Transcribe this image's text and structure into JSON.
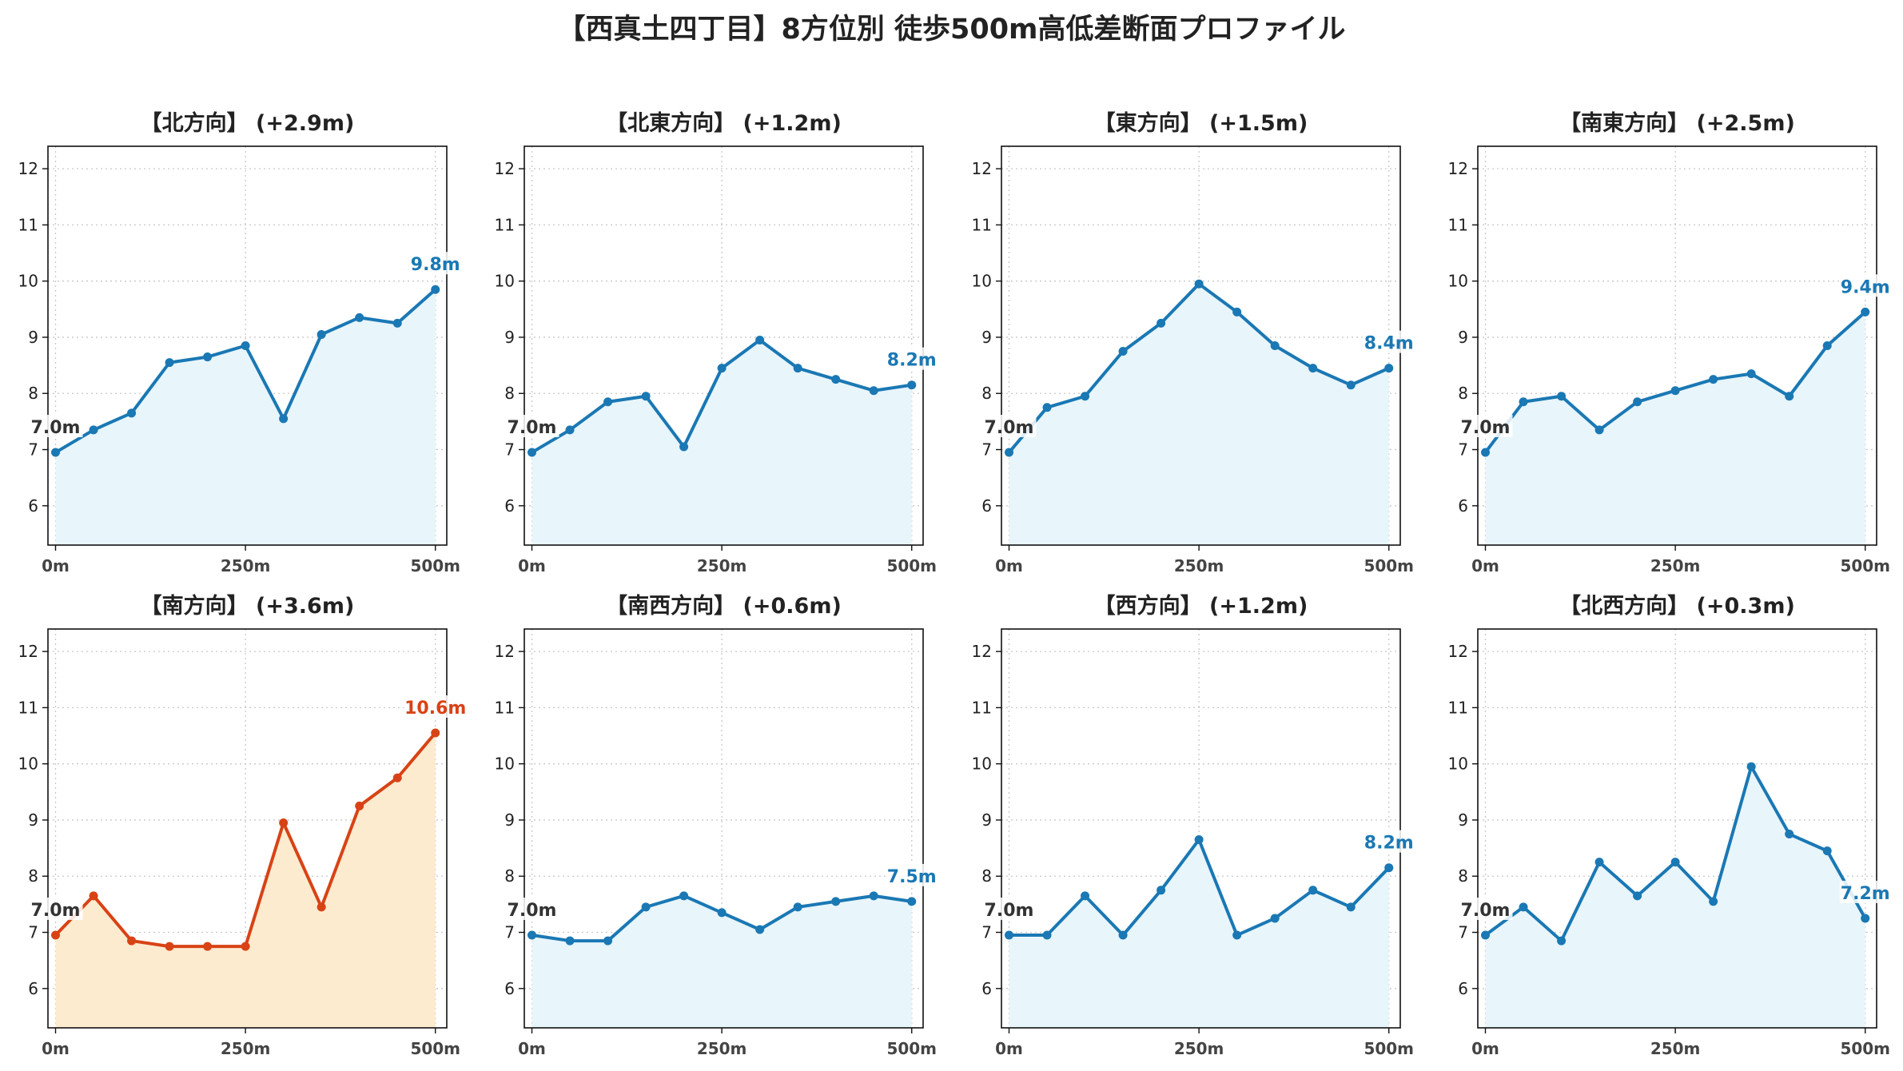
{
  "title": "【西真土四丁目】8方位別 徒歩500m高低差断面プロファイル",
  "colors": {
    "normal_line": "#1a78b4",
    "normal_fill": "#e8f5fb",
    "highlight_line": "#d84315",
    "highlight_fill": "#fdebd0",
    "start_label": "#333333",
    "grid": "#c8c8c8"
  },
  "chart_data": [
    {
      "type": "line",
      "title": "【北方向】 (+2.9m)",
      "highlight": false,
      "x": [
        0,
        50,
        100,
        150,
        200,
        250,
        300,
        350,
        400,
        450,
        500
      ],
      "y": [
        6.95,
        7.35,
        7.65,
        8.55,
        8.65,
        8.85,
        7.55,
        9.05,
        9.35,
        9.25,
        9.85
      ],
      "start_label": "7.0m",
      "end_label": "9.8m",
      "xticks": [
        0,
        250,
        500
      ],
      "xtick_labels": [
        "0m",
        "250m",
        "500m"
      ],
      "yticks": [
        6,
        7,
        8,
        9,
        10,
        11,
        12
      ],
      "ylim": [
        5.3,
        12.4
      ],
      "xlim": [
        -10,
        515
      ],
      "grid": true
    },
    {
      "type": "line",
      "title": "【北東方向】 (+1.2m)",
      "highlight": false,
      "x": [
        0,
        50,
        100,
        150,
        200,
        250,
        300,
        350,
        400,
        450,
        500
      ],
      "y": [
        6.95,
        7.35,
        7.85,
        7.95,
        7.05,
        8.45,
        8.95,
        8.45,
        8.25,
        8.05,
        8.15
      ],
      "start_label": "7.0m",
      "end_label": "8.2m",
      "xticks": [
        0,
        250,
        500
      ],
      "xtick_labels": [
        "0m",
        "250m",
        "500m"
      ],
      "yticks": [
        6,
        7,
        8,
        9,
        10,
        11,
        12
      ],
      "ylim": [
        5.3,
        12.4
      ],
      "xlim": [
        -10,
        515
      ],
      "grid": true
    },
    {
      "type": "line",
      "title": "【東方向】 (+1.5m)",
      "highlight": false,
      "x": [
        0,
        50,
        100,
        150,
        200,
        250,
        300,
        350,
        400,
        450,
        500
      ],
      "y": [
        6.95,
        7.75,
        7.95,
        8.75,
        9.25,
        9.95,
        9.45,
        8.85,
        8.45,
        8.15,
        8.45
      ],
      "start_label": "7.0m",
      "end_label": "8.4m",
      "xticks": [
        0,
        250,
        500
      ],
      "xtick_labels": [
        "0m",
        "250m",
        "500m"
      ],
      "yticks": [
        6,
        7,
        8,
        9,
        10,
        11,
        12
      ],
      "ylim": [
        5.3,
        12.4
      ],
      "xlim": [
        -10,
        515
      ],
      "grid": true
    },
    {
      "type": "line",
      "title": "【南東方向】 (+2.5m)",
      "highlight": false,
      "x": [
        0,
        50,
        100,
        150,
        200,
        250,
        300,
        350,
        400,
        450,
        500
      ],
      "y": [
        6.95,
        7.85,
        7.95,
        7.35,
        7.85,
        8.05,
        8.25,
        8.35,
        7.95,
        8.85,
        9.45
      ],
      "start_label": "7.0m",
      "end_label": "9.4m",
      "xticks": [
        0,
        250,
        500
      ],
      "xtick_labels": [
        "0m",
        "250m",
        "500m"
      ],
      "yticks": [
        6,
        7,
        8,
        9,
        10,
        11,
        12
      ],
      "ylim": [
        5.3,
        12.4
      ],
      "xlim": [
        -10,
        515
      ],
      "grid": true
    },
    {
      "type": "line",
      "title": "【南方向】 (+3.6m)",
      "highlight": true,
      "x": [
        0,
        50,
        100,
        150,
        200,
        250,
        300,
        350,
        400,
        450,
        500
      ],
      "y": [
        6.95,
        7.65,
        6.85,
        6.75,
        6.75,
        6.75,
        8.95,
        7.45,
        9.25,
        9.75,
        10.55
      ],
      "start_label": "7.0m",
      "end_label": "10.6m",
      "xticks": [
        0,
        250,
        500
      ],
      "xtick_labels": [
        "0m",
        "250m",
        "500m"
      ],
      "yticks": [
        6,
        7,
        8,
        9,
        10,
        11,
        12
      ],
      "ylim": [
        5.3,
        12.4
      ],
      "xlim": [
        -10,
        515
      ],
      "grid": true
    },
    {
      "type": "line",
      "title": "【南西方向】 (+0.6m)",
      "highlight": false,
      "x": [
        0,
        50,
        100,
        150,
        200,
        250,
        300,
        350,
        400,
        450,
        500
      ],
      "y": [
        6.95,
        6.85,
        6.85,
        7.45,
        7.65,
        7.35,
        7.05,
        7.45,
        7.55,
        7.65,
        7.55
      ],
      "start_label": "7.0m",
      "end_label": "7.5m",
      "xticks": [
        0,
        250,
        500
      ],
      "xtick_labels": [
        "0m",
        "250m",
        "500m"
      ],
      "yticks": [
        6,
        7,
        8,
        9,
        10,
        11,
        12
      ],
      "ylim": [
        5.3,
        12.4
      ],
      "xlim": [
        -10,
        515
      ],
      "grid": true
    },
    {
      "type": "line",
      "title": "【西方向】 (+1.2m)",
      "highlight": false,
      "x": [
        0,
        50,
        100,
        150,
        200,
        250,
        300,
        350,
        400,
        450,
        500
      ],
      "y": [
        6.95,
        6.95,
        7.65,
        6.95,
        7.75,
        8.65,
        6.95,
        7.25,
        7.75,
        7.45,
        8.15
      ],
      "start_label": "7.0m",
      "end_label": "8.2m",
      "xticks": [
        0,
        250,
        500
      ],
      "xtick_labels": [
        "0m",
        "250m",
        "500m"
      ],
      "yticks": [
        6,
        7,
        8,
        9,
        10,
        11,
        12
      ],
      "ylim": [
        5.3,
        12.4
      ],
      "xlim": [
        -10,
        515
      ],
      "grid": true
    },
    {
      "type": "line",
      "title": "【北西方向】 (+0.3m)",
      "highlight": false,
      "x": [
        0,
        50,
        100,
        150,
        200,
        250,
        300,
        350,
        400,
        450,
        500
      ],
      "y": [
        6.95,
        7.45,
        6.85,
        8.25,
        7.65,
        8.25,
        7.55,
        9.95,
        8.75,
        8.45,
        7.25
      ],
      "start_label": "7.0m",
      "end_label": "7.2m",
      "xticks": [
        0,
        250,
        500
      ],
      "xtick_labels": [
        "0m",
        "250m",
        "500m"
      ],
      "yticks": [
        6,
        7,
        8,
        9,
        10,
        11,
        12
      ],
      "ylim": [
        5.3,
        12.4
      ],
      "xlim": [
        -10,
        515
      ],
      "grid": true
    }
  ]
}
